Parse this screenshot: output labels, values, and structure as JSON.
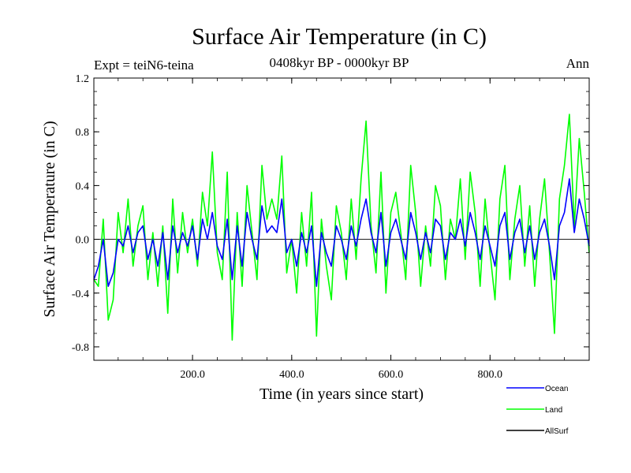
{
  "chart_data": {
    "type": "line",
    "title": "Surface Air Temperature (in C)",
    "subtitle": "0408kyr BP - 0000kyr BP",
    "left_label": "Expt = teiN6-teina",
    "right_label": "Ann",
    "xlabel": "Time (in years since start)",
    "ylabel": "Surface Air Temperature (in C)",
    "xlim": [
      1,
      1000
    ],
    "ylim": [
      -0.9,
      1.2
    ],
    "x_ticks": [
      200,
      400,
      600,
      800
    ],
    "x_tick_labels": [
      "200.0",
      "400.0",
      "600.0",
      "800.0"
    ],
    "y_ticks": [
      -0.8,
      -0.4,
      0.0,
      0.4,
      0.8,
      1.2
    ],
    "y_tick_labels": [
      "-0.8",
      "-0.4",
      "0.0",
      "0.4",
      "0.8",
      "1.2"
    ],
    "zero_line": 0.0,
    "legend_position": "bottom-right",
    "series": [
      {
        "name": "Land",
        "color": "#00ff00",
        "x": [
          1,
          10,
          20,
          30,
          40,
          50,
          60,
          70,
          80,
          90,
          100,
          110,
          120,
          130,
          140,
          150,
          160,
          170,
          180,
          190,
          200,
          210,
          220,
          230,
          240,
          250,
          260,
          270,
          280,
          290,
          300,
          310,
          320,
          330,
          340,
          350,
          360,
          370,
          380,
          390,
          400,
          410,
          420,
          430,
          440,
          450,
          460,
          470,
          480,
          490,
          500,
          510,
          520,
          530,
          540,
          550,
          560,
          570,
          580,
          590,
          600,
          610,
          620,
          630,
          640,
          650,
          660,
          670,
          680,
          690,
          700,
          710,
          720,
          730,
          740,
          750,
          760,
          770,
          780,
          790,
          800,
          810,
          820,
          830,
          840,
          850,
          860,
          870,
          880,
          890,
          900,
          910,
          920,
          930,
          940,
          950,
          960,
          970,
          980,
          990,
          1000
        ],
        "values": [
          -0.3,
          -0.35,
          0.15,
          -0.6,
          -0.45,
          0.2,
          -0.1,
          0.3,
          -0.2,
          0.1,
          0.25,
          -0.3,
          0.05,
          -0.35,
          0.1,
          -0.55,
          0.3,
          -0.25,
          0.2,
          -0.1,
          0.15,
          -0.2,
          0.35,
          0.1,
          0.65,
          -0.1,
          -0.3,
          0.5,
          -0.75,
          0.2,
          -0.35,
          0.4,
          0.05,
          -0.3,
          0.55,
          0.15,
          0.3,
          0.15,
          0.62,
          -0.25,
          0.0,
          -0.4,
          0.2,
          -0.2,
          0.35,
          -0.72,
          0.15,
          -0.2,
          -0.45,
          0.25,
          0.05,
          -0.3,
          0.3,
          -0.15,
          0.45,
          0.88,
          0.1,
          -0.25,
          0.5,
          -0.4,
          0.2,
          0.35,
          0.05,
          -0.3,
          0.55,
          0.2,
          -0.35,
          0.1,
          -0.2,
          0.4,
          0.25,
          -0.3,
          0.15,
          0.0,
          0.45,
          -0.15,
          0.5,
          0.2,
          -0.35,
          0.3,
          -0.1,
          -0.45,
          0.3,
          0.55,
          -0.3,
          0.15,
          0.4,
          -0.2,
          0.25,
          -0.35,
          0.15,
          0.45,
          -0.1,
          -0.7,
          0.3,
          0.55,
          0.93,
          0.1,
          0.75,
          0.35,
          -0.1
        ]
      },
      {
        "name": "Ocean",
        "color": "#0000ff",
        "x": [
          1,
          10,
          20,
          30,
          40,
          50,
          60,
          70,
          80,
          90,
          100,
          110,
          120,
          130,
          140,
          150,
          160,
          170,
          180,
          190,
          200,
          210,
          220,
          230,
          240,
          250,
          260,
          270,
          280,
          290,
          300,
          310,
          320,
          330,
          340,
          350,
          360,
          370,
          380,
          390,
          400,
          410,
          420,
          430,
          440,
          450,
          460,
          470,
          480,
          490,
          500,
          510,
          520,
          530,
          540,
          550,
          560,
          570,
          580,
          590,
          600,
          610,
          620,
          630,
          640,
          650,
          660,
          670,
          680,
          690,
          700,
          710,
          720,
          730,
          740,
          750,
          760,
          770,
          780,
          790,
          800,
          810,
          820,
          830,
          840,
          850,
          860,
          870,
          880,
          890,
          900,
          910,
          920,
          930,
          940,
          950,
          960,
          970,
          980,
          990,
          1000
        ],
        "values": [
          -0.3,
          -0.2,
          0.0,
          -0.35,
          -0.25,
          0.0,
          -0.05,
          0.1,
          -0.1,
          0.05,
          0.1,
          -0.15,
          0.0,
          -0.2,
          0.05,
          -0.3,
          0.1,
          -0.1,
          0.05,
          -0.05,
          0.1,
          -0.15,
          0.15,
          0.0,
          0.2,
          -0.05,
          -0.15,
          0.15,
          -0.3,
          0.1,
          -0.2,
          0.2,
          0.0,
          -0.15,
          0.25,
          0.05,
          0.1,
          0.05,
          0.3,
          -0.1,
          0.0,
          -0.2,
          0.05,
          -0.1,
          0.1,
          -0.35,
          0.05,
          -0.1,
          -0.2,
          0.1,
          0.0,
          -0.15,
          0.1,
          -0.05,
          0.15,
          0.3,
          0.05,
          -0.1,
          0.2,
          -0.2,
          0.05,
          0.15,
          0.0,
          -0.15,
          0.2,
          0.05,
          -0.15,
          0.05,
          -0.1,
          0.15,
          0.1,
          -0.15,
          0.05,
          0.0,
          0.15,
          -0.05,
          0.2,
          0.05,
          -0.15,
          0.1,
          -0.05,
          -0.2,
          0.1,
          0.2,
          -0.15,
          0.05,
          0.15,
          -0.1,
          0.1,
          -0.15,
          0.05,
          0.15,
          -0.05,
          -0.3,
          0.1,
          0.2,
          0.45,
          0.05,
          0.3,
          0.15,
          -0.05
        ]
      },
      {
        "name": "AllSurf",
        "color": "#000000",
        "x": [],
        "values": []
      }
    ]
  }
}
